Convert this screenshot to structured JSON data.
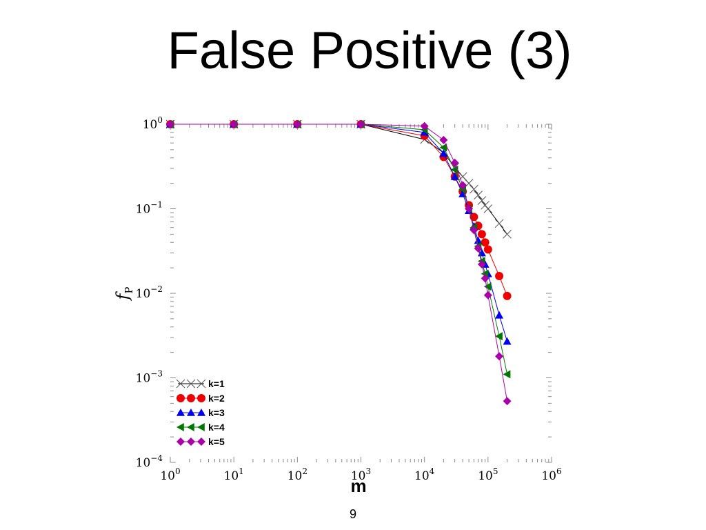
{
  "slide": {
    "title": "False Positive (3)",
    "page_number": "9"
  },
  "chart_data": {
    "type": "line",
    "xlabel": "m",
    "ylabel": "f",
    "ylabel_subscript": "P",
    "xscale": "log",
    "yscale": "log",
    "xlim": [
      1,
      1000000
    ],
    "ylim": [
      0.0001,
      1
    ],
    "x_tick_labels": [
      {
        "base": "10",
        "exp": "0"
      },
      {
        "base": "10",
        "exp": "1"
      },
      {
        "base": "10",
        "exp": "2"
      },
      {
        "base": "10",
        "exp": "3"
      },
      {
        "base": "10",
        "exp": "4"
      },
      {
        "base": "10",
        "exp": "5"
      },
      {
        "base": "10",
        "exp": "6"
      }
    ],
    "y_tick_labels": [
      {
        "base": "10",
        "exp": "0"
      },
      {
        "base": "10",
        "exp": "−1"
      },
      {
        "base": "10",
        "exp": "−2"
      },
      {
        "base": "10",
        "exp": "−3"
      },
      {
        "base": "10",
        "exp": "−4"
      }
    ],
    "grid": false,
    "legend_position": "bottom-left",
    "series": [
      {
        "name": "k=1",
        "color": "#333333",
        "marker": "x",
        "line_color": "#000000",
        "points": [
          [
            1,
            1
          ],
          [
            10,
            1
          ],
          [
            100,
            1
          ],
          [
            1000,
            1
          ],
          [
            10000,
            0.66
          ],
          [
            20000,
            0.46
          ],
          [
            30000,
            0.31
          ],
          [
            40000,
            0.24
          ],
          [
            50000,
            0.2
          ],
          [
            60000,
            0.17
          ],
          [
            70000,
            0.145
          ],
          [
            80000,
            0.125
          ],
          [
            90000,
            0.11
          ],
          [
            100000,
            0.1
          ],
          [
            150000,
            0.067
          ],
          [
            200000,
            0.05
          ]
        ]
      },
      {
        "name": "k=2",
        "color": "#ee0000",
        "marker": "circle",
        "line_color": "#ee0000",
        "points": [
          [
            1,
            1
          ],
          [
            10,
            1
          ],
          [
            100,
            1
          ],
          [
            1000,
            1
          ],
          [
            10000,
            0.73
          ],
          [
            20000,
            0.41
          ],
          [
            30000,
            0.24
          ],
          [
            40000,
            0.16
          ],
          [
            50000,
            0.11
          ],
          [
            60000,
            0.08
          ],
          [
            70000,
            0.063
          ],
          [
            80000,
            0.05
          ],
          [
            90000,
            0.04
          ],
          [
            100000,
            0.033
          ],
          [
            150000,
            0.016
          ],
          [
            200000,
            0.0093
          ]
        ]
      },
      {
        "name": "k=3",
        "color": "#0000ee",
        "marker": "triangle-up",
        "line_color": "#0000ee",
        "points": [
          [
            1,
            1
          ],
          [
            10,
            1
          ],
          [
            100,
            1
          ],
          [
            1000,
            1
          ],
          [
            10000,
            0.8
          ],
          [
            20000,
            0.45
          ],
          [
            30000,
            0.24
          ],
          [
            40000,
            0.15
          ],
          [
            50000,
            0.095
          ],
          [
            60000,
            0.062
          ],
          [
            70000,
            0.042
          ],
          [
            80000,
            0.03
          ],
          [
            90000,
            0.022
          ],
          [
            100000,
            0.017
          ],
          [
            150000,
            0.0055
          ],
          [
            200000,
            0.0027
          ]
        ]
      },
      {
        "name": "k=4",
        "color": "#007700",
        "marker": "triangle-left",
        "line_color": "#007700",
        "points": [
          [
            1,
            1
          ],
          [
            10,
            1
          ],
          [
            100,
            1
          ],
          [
            1000,
            1
          ],
          [
            10000,
            0.86
          ],
          [
            20000,
            0.53
          ],
          [
            30000,
            0.29
          ],
          [
            40000,
            0.17
          ],
          [
            50000,
            0.1
          ],
          [
            60000,
            0.06
          ],
          [
            70000,
            0.036
          ],
          [
            80000,
            0.024
          ],
          [
            90000,
            0.017
          ],
          [
            100000,
            0.012
          ],
          [
            150000,
            0.0031
          ],
          [
            200000,
            0.0011
          ]
        ]
      },
      {
        "name": "k=5",
        "color": "#aa00aa",
        "marker": "diamond",
        "line_color": "#aa00aa",
        "points": [
          [
            1,
            1
          ],
          [
            10,
            1
          ],
          [
            100,
            1
          ],
          [
            1000,
            1
          ],
          [
            10000,
            0.95
          ],
          [
            20000,
            0.65
          ],
          [
            30000,
            0.35
          ],
          [
            40000,
            0.19
          ],
          [
            50000,
            0.1
          ],
          [
            60000,
            0.056
          ],
          [
            70000,
            0.034
          ],
          [
            80000,
            0.022
          ],
          [
            90000,
            0.015
          ],
          [
            100000,
            0.0095
          ],
          [
            150000,
            0.0018
          ],
          [
            200000,
            0.00053
          ]
        ]
      }
    ]
  }
}
